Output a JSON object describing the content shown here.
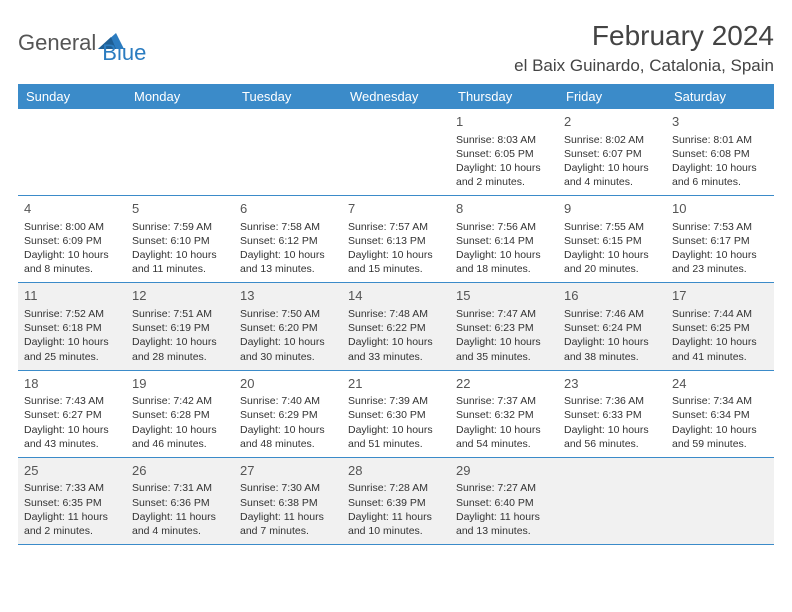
{
  "logo": {
    "text1": "General",
    "text2": "Blue"
  },
  "title": "February 2024",
  "location": "el Baix Guinardo, Catalonia, Spain",
  "colors": {
    "header_bg": "#3b8bc9",
    "header_text": "#ffffff",
    "shaded_bg": "#f1f1f1",
    "border": "#3b8bc9",
    "logo_gray": "#555555",
    "logo_blue": "#2b7cc0"
  },
  "weekdays": [
    "Sunday",
    "Monday",
    "Tuesday",
    "Wednesday",
    "Thursday",
    "Friday",
    "Saturday"
  ],
  "weeks": [
    {
      "shaded": false,
      "days": [
        null,
        null,
        null,
        null,
        {
          "n": "1",
          "sr": "Sunrise: 8:03 AM",
          "ss": "Sunset: 6:05 PM",
          "d1": "Daylight: 10 hours",
          "d2": "and 2 minutes."
        },
        {
          "n": "2",
          "sr": "Sunrise: 8:02 AM",
          "ss": "Sunset: 6:07 PM",
          "d1": "Daylight: 10 hours",
          "d2": "and 4 minutes."
        },
        {
          "n": "3",
          "sr": "Sunrise: 8:01 AM",
          "ss": "Sunset: 6:08 PM",
          "d1": "Daylight: 10 hours",
          "d2": "and 6 minutes."
        }
      ]
    },
    {
      "shaded": false,
      "days": [
        {
          "n": "4",
          "sr": "Sunrise: 8:00 AM",
          "ss": "Sunset: 6:09 PM",
          "d1": "Daylight: 10 hours",
          "d2": "and 8 minutes."
        },
        {
          "n": "5",
          "sr": "Sunrise: 7:59 AM",
          "ss": "Sunset: 6:10 PM",
          "d1": "Daylight: 10 hours",
          "d2": "and 11 minutes."
        },
        {
          "n": "6",
          "sr": "Sunrise: 7:58 AM",
          "ss": "Sunset: 6:12 PM",
          "d1": "Daylight: 10 hours",
          "d2": "and 13 minutes."
        },
        {
          "n": "7",
          "sr": "Sunrise: 7:57 AM",
          "ss": "Sunset: 6:13 PM",
          "d1": "Daylight: 10 hours",
          "d2": "and 15 minutes."
        },
        {
          "n": "8",
          "sr": "Sunrise: 7:56 AM",
          "ss": "Sunset: 6:14 PM",
          "d1": "Daylight: 10 hours",
          "d2": "and 18 minutes."
        },
        {
          "n": "9",
          "sr": "Sunrise: 7:55 AM",
          "ss": "Sunset: 6:15 PM",
          "d1": "Daylight: 10 hours",
          "d2": "and 20 minutes."
        },
        {
          "n": "10",
          "sr": "Sunrise: 7:53 AM",
          "ss": "Sunset: 6:17 PM",
          "d1": "Daylight: 10 hours",
          "d2": "and 23 minutes."
        }
      ]
    },
    {
      "shaded": true,
      "days": [
        {
          "n": "11",
          "sr": "Sunrise: 7:52 AM",
          "ss": "Sunset: 6:18 PM",
          "d1": "Daylight: 10 hours",
          "d2": "and 25 minutes."
        },
        {
          "n": "12",
          "sr": "Sunrise: 7:51 AM",
          "ss": "Sunset: 6:19 PM",
          "d1": "Daylight: 10 hours",
          "d2": "and 28 minutes."
        },
        {
          "n": "13",
          "sr": "Sunrise: 7:50 AM",
          "ss": "Sunset: 6:20 PM",
          "d1": "Daylight: 10 hours",
          "d2": "and 30 minutes."
        },
        {
          "n": "14",
          "sr": "Sunrise: 7:48 AM",
          "ss": "Sunset: 6:22 PM",
          "d1": "Daylight: 10 hours",
          "d2": "and 33 minutes."
        },
        {
          "n": "15",
          "sr": "Sunrise: 7:47 AM",
          "ss": "Sunset: 6:23 PM",
          "d1": "Daylight: 10 hours",
          "d2": "and 35 minutes."
        },
        {
          "n": "16",
          "sr": "Sunrise: 7:46 AM",
          "ss": "Sunset: 6:24 PM",
          "d1": "Daylight: 10 hours",
          "d2": "and 38 minutes."
        },
        {
          "n": "17",
          "sr": "Sunrise: 7:44 AM",
          "ss": "Sunset: 6:25 PM",
          "d1": "Daylight: 10 hours",
          "d2": "and 41 minutes."
        }
      ]
    },
    {
      "shaded": false,
      "days": [
        {
          "n": "18",
          "sr": "Sunrise: 7:43 AM",
          "ss": "Sunset: 6:27 PM",
          "d1": "Daylight: 10 hours",
          "d2": "and 43 minutes."
        },
        {
          "n": "19",
          "sr": "Sunrise: 7:42 AM",
          "ss": "Sunset: 6:28 PM",
          "d1": "Daylight: 10 hours",
          "d2": "and 46 minutes."
        },
        {
          "n": "20",
          "sr": "Sunrise: 7:40 AM",
          "ss": "Sunset: 6:29 PM",
          "d1": "Daylight: 10 hours",
          "d2": "and 48 minutes."
        },
        {
          "n": "21",
          "sr": "Sunrise: 7:39 AM",
          "ss": "Sunset: 6:30 PM",
          "d1": "Daylight: 10 hours",
          "d2": "and 51 minutes."
        },
        {
          "n": "22",
          "sr": "Sunrise: 7:37 AM",
          "ss": "Sunset: 6:32 PM",
          "d1": "Daylight: 10 hours",
          "d2": "and 54 minutes."
        },
        {
          "n": "23",
          "sr": "Sunrise: 7:36 AM",
          "ss": "Sunset: 6:33 PM",
          "d1": "Daylight: 10 hours",
          "d2": "and 56 minutes."
        },
        {
          "n": "24",
          "sr": "Sunrise: 7:34 AM",
          "ss": "Sunset: 6:34 PM",
          "d1": "Daylight: 10 hours",
          "d2": "and 59 minutes."
        }
      ]
    },
    {
      "shaded": true,
      "days": [
        {
          "n": "25",
          "sr": "Sunrise: 7:33 AM",
          "ss": "Sunset: 6:35 PM",
          "d1": "Daylight: 11 hours",
          "d2": "and 2 minutes."
        },
        {
          "n": "26",
          "sr": "Sunrise: 7:31 AM",
          "ss": "Sunset: 6:36 PM",
          "d1": "Daylight: 11 hours",
          "d2": "and 4 minutes."
        },
        {
          "n": "27",
          "sr": "Sunrise: 7:30 AM",
          "ss": "Sunset: 6:38 PM",
          "d1": "Daylight: 11 hours",
          "d2": "and 7 minutes."
        },
        {
          "n": "28",
          "sr": "Sunrise: 7:28 AM",
          "ss": "Sunset: 6:39 PM",
          "d1": "Daylight: 11 hours",
          "d2": "and 10 minutes."
        },
        {
          "n": "29",
          "sr": "Sunrise: 7:27 AM",
          "ss": "Sunset: 6:40 PM",
          "d1": "Daylight: 11 hours",
          "d2": "and 13 minutes."
        },
        null,
        null
      ]
    }
  ]
}
